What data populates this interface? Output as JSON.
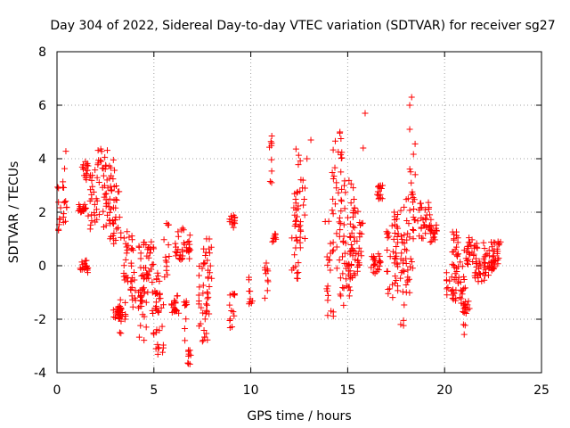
{
  "chart_data": {
    "type": "scatter",
    "title": "Day 304 of 2022, Sidereal Day-to-day VTEC variation (SDTVAR) for receiver sg27",
    "xlabel": "GPS time / hours",
    "ylabel": "SDTVAR / TECUs",
    "xlim": [
      0,
      25
    ],
    "ylim": [
      -4,
      8
    ],
    "x_ticks": [
      0,
      5,
      10,
      15,
      20,
      25
    ],
    "y_ticks": [
      -4,
      -2,
      0,
      2,
      4,
      6,
      8
    ],
    "x_tick_labels": [
      "0",
      "5",
      "10",
      "15",
      "20",
      "25"
    ],
    "y_tick_labels": [
      "-4",
      "-2",
      "0",
      "2",
      "4",
      "6",
      "8"
    ],
    "grid": true,
    "marker": "plus",
    "color": "#ff0000",
    "series": [
      {
        "name": "SDTVAR",
        "segments": [
          {
            "x0": 0.0,
            "x1": 0.15,
            "y0": 1.2,
            "y1": 3.1
          },
          {
            "x0": 0.15,
            "x1": 0.5,
            "y0": 1.6,
            "y1": 4.3
          },
          {
            "x0": 1.1,
            "x1": 1.5,
            "y0": 2.0,
            "y1": 2.3
          },
          {
            "x0": 1.2,
            "x1": 1.6,
            "y0": -0.3,
            "y1": 0.2
          },
          {
            "x0": 1.3,
            "x1": 1.6,
            "y0": 3.2,
            "y1": 3.9
          },
          {
            "x0": 1.6,
            "x1": 2.1,
            "y0": 1.2,
            "y1": 3.8
          },
          {
            "x0": 2.0,
            "x1": 2.6,
            "y0": 1.8,
            "y1": 4.5
          },
          {
            "x0": 2.4,
            "x1": 3.0,
            "y0": 1.2,
            "y1": 4.3
          },
          {
            "x0": 2.7,
            "x1": 3.3,
            "y0": 0.8,
            "y1": 3.0
          },
          {
            "x0": 2.9,
            "x1": 3.3,
            "y0": -2.0,
            "y1": -1.5
          },
          {
            "x0": 3.2,
            "x1": 3.6,
            "y0": -2.6,
            "y1": -0.8
          },
          {
            "x0": 3.4,
            "x1": 3.9,
            "y0": -0.6,
            "y1": 1.3
          },
          {
            "x0": 3.8,
            "x1": 4.4,
            "y0": -1.6,
            "y1": 0.8
          },
          {
            "x0": 4.2,
            "x1": 4.7,
            "y0": -2.8,
            "y1": -0.3
          },
          {
            "x0": 4.4,
            "x1": 5.0,
            "y0": -0.5,
            "y1": 0.9
          },
          {
            "x0": 4.9,
            "x1": 5.4,
            "y0": -2.6,
            "y1": -0.2
          },
          {
            "x0": 5.1,
            "x1": 5.5,
            "y0": -3.5,
            "y1": -1.0
          },
          {
            "x0": 5.5,
            "x1": 5.8,
            "y0": -0.6,
            "y1": 1.6
          },
          {
            "x0": 5.9,
            "x1": 6.3,
            "y0": -1.8,
            "y1": -1.0
          },
          {
            "x0": 6.1,
            "x1": 6.6,
            "y0": 0.2,
            "y1": 1.4
          },
          {
            "x0": 6.5,
            "x1": 6.7,
            "y0": -2.8,
            "y1": -1.2
          },
          {
            "x0": 6.6,
            "x1": 6.9,
            "y0": 0.0,
            "y1": 1.2
          },
          {
            "x0": 6.7,
            "x1": 6.9,
            "y0": -3.7,
            "y1": -3.1
          },
          {
            "x0": 7.3,
            "x1": 7.9,
            "y0": -3.0,
            "y1": 0.2
          },
          {
            "x0": 7.5,
            "x1": 8.0,
            "y0": -1.8,
            "y1": 1.1
          },
          {
            "x0": 8.9,
            "x1": 9.2,
            "y0": 1.3,
            "y1": 1.9
          },
          {
            "x0": 8.9,
            "x1": 9.2,
            "y0": -2.8,
            "y1": -0.4
          },
          {
            "x0": 9.9,
            "x1": 10.1,
            "y0": -1.5,
            "y1": -0.4
          },
          {
            "x0": 10.7,
            "x1": 10.9,
            "y0": -1.4,
            "y1": 0.1
          },
          {
            "x0": 10.9,
            "x1": 11.1,
            "y0": 2.9,
            "y1": 5.0
          },
          {
            "x0": 11.1,
            "x1": 11.3,
            "y0": 0.8,
            "y1": 1.2
          },
          {
            "x0": 12.0,
            "x1": 12.6,
            "y0": -0.5,
            "y1": 2.8
          },
          {
            "x0": 12.3,
            "x1": 12.8,
            "y0": 0.4,
            "y1": 4.6
          },
          {
            "x0": 13.8,
            "x1": 14.3,
            "y0": -1.9,
            "y1": 2.5
          },
          {
            "x0": 14.2,
            "x1": 14.7,
            "y0": 2.0,
            "y1": 5.0
          },
          {
            "x0": 14.4,
            "x1": 15.2,
            "y0": -1.6,
            "y1": 1.8
          },
          {
            "x0": 14.8,
            "x1": 15.4,
            "y0": -1.1,
            "y1": 3.3
          },
          {
            "x0": 15.1,
            "x1": 15.6,
            "y0": -0.5,
            "y1": 2.5
          },
          {
            "x0": 15.5,
            "x1": 15.8,
            "y0": -0.2,
            "y1": 1.7
          },
          {
            "x0": 16.2,
            "x1": 16.7,
            "y0": -0.3,
            "y1": 0.7
          },
          {
            "x0": 16.5,
            "x1": 16.8,
            "y0": 2.5,
            "y1": 3.0
          },
          {
            "x0": 17.0,
            "x1": 17.6,
            "y0": -1.4,
            "y1": 1.5
          },
          {
            "x0": 17.4,
            "x1": 17.8,
            "y0": -0.1,
            "y1": 2.1
          },
          {
            "x0": 17.7,
            "x1": 18.2,
            "y0": -2.3,
            "y1": 1.3
          },
          {
            "x0": 17.9,
            "x1": 18.4,
            "y0": -1.0,
            "y1": 2.8
          },
          {
            "x0": 18.2,
            "x1": 18.5,
            "y0": 1.5,
            "y1": 4.7
          },
          {
            "x0": 18.6,
            "x1": 19.3,
            "y0": 0.9,
            "y1": 2.4
          },
          {
            "x0": 19.2,
            "x1": 19.6,
            "y0": 0.8,
            "y1": 1.6
          },
          {
            "x0": 20.1,
            "x1": 20.6,
            "y0": -1.4,
            "y1": -0.2
          },
          {
            "x0": 20.4,
            "x1": 20.8,
            "y0": -0.1,
            "y1": 1.3
          },
          {
            "x0": 20.6,
            "x1": 21.1,
            "y0": -1.9,
            "y1": 0.6
          },
          {
            "x0": 20.9,
            "x1": 21.3,
            "y0": -2.6,
            "y1": -0.8
          },
          {
            "x0": 21.1,
            "x1": 21.6,
            "y0": 0.0,
            "y1": 1.1
          },
          {
            "x0": 21.5,
            "x1": 22.1,
            "y0": -0.6,
            "y1": 0.9
          },
          {
            "x0": 22.0,
            "x1": 22.6,
            "y0": -0.5,
            "y1": 0.6
          },
          {
            "x0": 22.4,
            "x1": 22.9,
            "y0": -0.1,
            "y1": 0.9
          }
        ],
        "outliers": [
          {
            "x": 15.9,
            "y": 5.7
          },
          {
            "x": 15.8,
            "y": 4.4
          },
          {
            "x": 18.3,
            "y": 6.3
          },
          {
            "x": 18.2,
            "y": 6.0
          },
          {
            "x": 18.2,
            "y": 5.1
          },
          {
            "x": 13.1,
            "y": 4.7
          },
          {
            "x": 12.9,
            "y": 4.0
          },
          {
            "x": 16.6,
            "y": 2.5
          },
          {
            "x": 16.8,
            "y": 3.0
          },
          {
            "x": 17.4,
            "y": 2.0
          },
          {
            "x": 10.8,
            "y": 0.1
          },
          {
            "x": 14.6,
            "y": 5.0
          }
        ]
      }
    ]
  }
}
